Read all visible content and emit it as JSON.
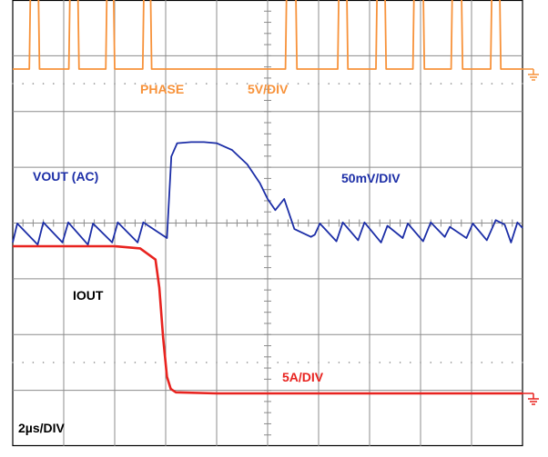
{
  "chart_data": {
    "type": "line",
    "title": "",
    "xlabel": "",
    "ylabel": "",
    "grid": true,
    "grid_divisions": {
      "x": 10,
      "y": 8
    },
    "xlim": [
      0,
      20
    ],
    "time_unit": "µs",
    "timebase": "2µs/DIV",
    "series": [
      {
        "name": "PHASE",
        "scale": "5V/DIV",
        "unit": "V",
        "color": "#f7923a",
        "ground_marker": true,
        "baseline": 0,
        "high": 11.3,
        "pulses": [
          [
            0.65,
            1.05
          ],
          [
            2.2,
            2.6
          ],
          [
            3.65,
            4.0
          ],
          [
            5.1,
            5.45
          ],
          [
            10.7,
            11.15
          ],
          [
            12.75,
            13.15
          ],
          [
            14.25,
            14.65
          ],
          [
            15.7,
            16.15
          ],
          [
            17.2,
            17.65
          ],
          [
            18.75,
            19.15
          ]
        ],
        "points": []
      },
      {
        "name": "VOUT (AC)",
        "scale": "50mV/DIV",
        "unit": "mV",
        "color": "#1c2ea7",
        "ground_marker": false,
        "points": [
          [
            0,
            -17
          ],
          [
            0.18,
            0
          ],
          [
            0.98,
            -19
          ],
          [
            1.2,
            1
          ],
          [
            1.95,
            -17
          ],
          [
            2.18,
            1
          ],
          [
            2.95,
            -19
          ],
          [
            3.15,
            0
          ],
          [
            3.9,
            -17
          ],
          [
            4.12,
            1
          ],
          [
            4.9,
            -17
          ],
          [
            5.12,
            1
          ],
          [
            6.05,
            -13
          ],
          [
            6.22,
            60
          ],
          [
            6.45,
            72
          ],
          [
            7.0,
            73
          ],
          [
            7.5,
            73
          ],
          [
            8.0,
            72
          ],
          [
            8.6,
            66
          ],
          [
            9.2,
            53
          ],
          [
            9.7,
            36
          ],
          [
            10.0,
            22
          ],
          [
            10.3,
            12
          ],
          [
            10.65,
            22
          ],
          [
            11.05,
            -5
          ],
          [
            11.7,
            -12
          ],
          [
            11.85,
            -10
          ],
          [
            12.05,
            0
          ],
          [
            12.7,
            -16
          ],
          [
            12.95,
            1
          ],
          [
            13.55,
            -15
          ],
          [
            13.8,
            1
          ],
          [
            14.45,
            -17
          ],
          [
            14.7,
            -2
          ],
          [
            15.3,
            -13
          ],
          [
            15.5,
            0
          ],
          [
            16.1,
            -16
          ],
          [
            16.4,
            1
          ],
          [
            16.95,
            -12
          ],
          [
            17.15,
            -3
          ],
          [
            17.8,
            -13
          ],
          [
            18.05,
            0
          ],
          [
            18.6,
            -15
          ],
          [
            18.95,
            3
          ],
          [
            19.3,
            -1
          ],
          [
            19.55,
            -17
          ],
          [
            19.8,
            1
          ],
          [
            20,
            -4
          ]
        ]
      },
      {
        "name": "IOUT",
        "scale": "5A/DIV",
        "unit": "A",
        "color": "#e8231f",
        "ground_marker": true,
        "points": [
          [
            0,
            13.2
          ],
          [
            1.0,
            13.2
          ],
          [
            2.0,
            13.2
          ],
          [
            3.0,
            13.2
          ],
          [
            4.0,
            13.2
          ],
          [
            5.0,
            13.0
          ],
          [
            5.6,
            12.0
          ],
          [
            5.75,
            9.5
          ],
          [
            5.9,
            5.0
          ],
          [
            6.05,
            1.5
          ],
          [
            6.2,
            0.4
          ],
          [
            6.4,
            0.1
          ],
          [
            8.0,
            0
          ],
          [
            12.0,
            0
          ],
          [
            16.0,
            0
          ],
          [
            20.0,
            0
          ]
        ]
      }
    ],
    "labels": {
      "phase_label": "PHASE",
      "phase_scale": "5V/DIV",
      "vout_label": "VOUT (AC)",
      "vout_scale": "50mV/DIV",
      "iout_label": "IOUT",
      "iout_scale": "5A/DIV",
      "timebase": "2µs/DIV"
    }
  }
}
